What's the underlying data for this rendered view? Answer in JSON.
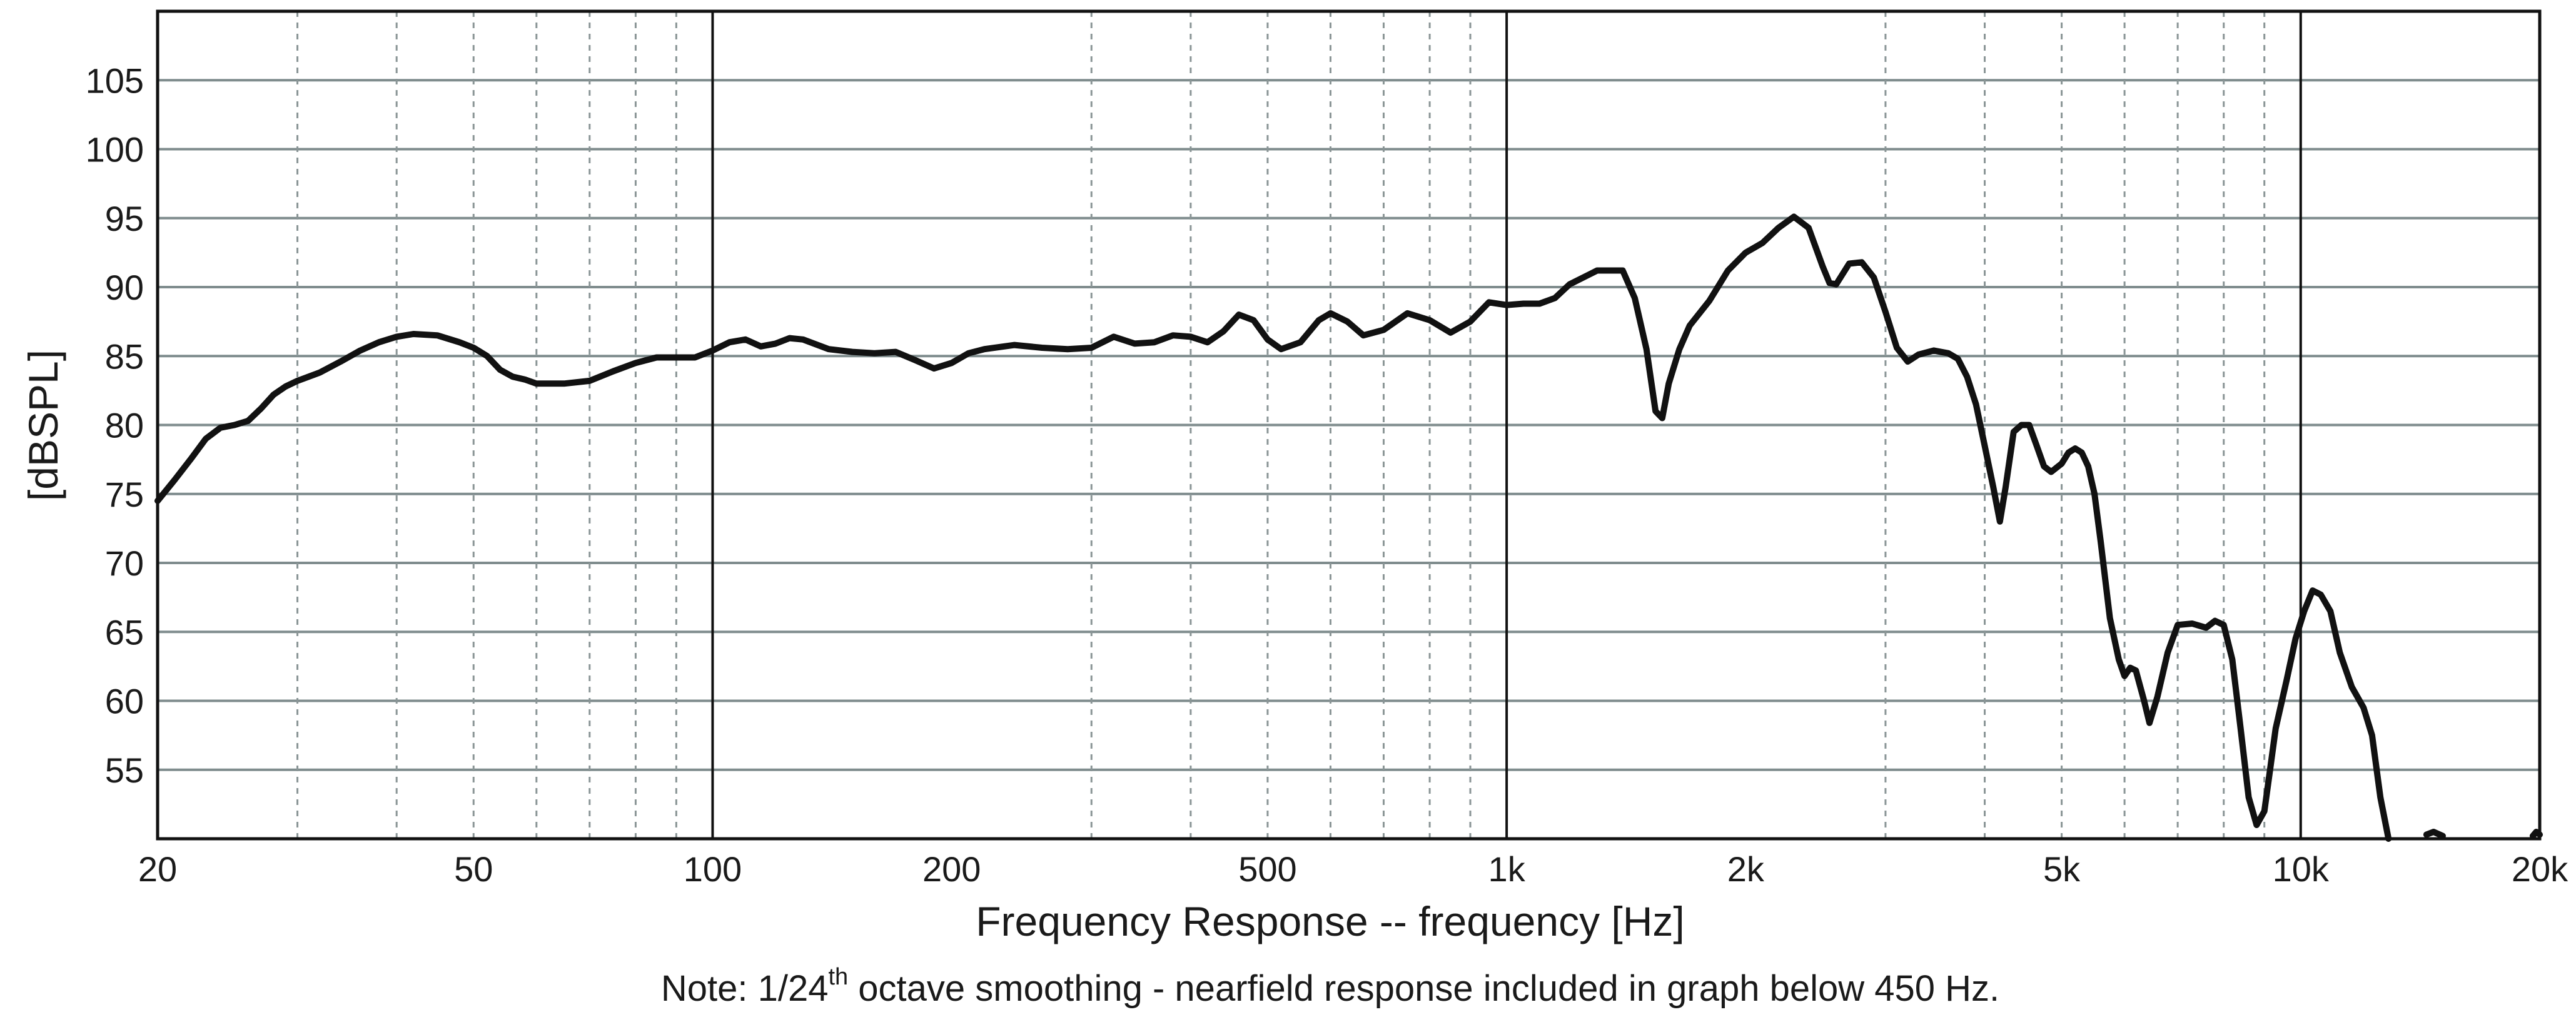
{
  "chart_data": {
    "type": "line",
    "xlabel": "Frequency Response -- frequency [Hz]",
    "ylabel": "[dBSPL]",
    "x_scale": "log",
    "xlim": [
      20,
      20000
    ],
    "ylim": [
      50,
      110
    ],
    "grid": true,
    "x_tick_labels": [
      {
        "value": 20,
        "label": "20"
      },
      {
        "value": 50,
        "label": "50"
      },
      {
        "value": 100,
        "label": "100"
      },
      {
        "value": 200,
        "label": "200"
      },
      {
        "value": 500,
        "label": "500"
      },
      {
        "value": 1000,
        "label": "1k"
      },
      {
        "value": 2000,
        "label": "2k"
      },
      {
        "value": 5000,
        "label": "5k"
      },
      {
        "value": 10000,
        "label": "10k"
      },
      {
        "value": 20000,
        "label": "20k"
      }
    ],
    "y_ticks": [
      55,
      60,
      65,
      70,
      75,
      80,
      85,
      90,
      95,
      100,
      105
    ],
    "x_major_grid": [
      100,
      1000,
      10000
    ],
    "x_minor_grid": [
      30,
      40,
      50,
      60,
      70,
      80,
      90,
      300,
      400,
      500,
      600,
      700,
      800,
      900,
      3000,
      4000,
      5000,
      6000,
      7000,
      8000,
      9000
    ],
    "note": {
      "prefix": "Note: 1/24",
      "superscript": "th",
      "suffix": " octave smoothing - nearfield response included in graph below 450 Hz."
    },
    "series": [
      {
        "color": "#111111",
        "points": [
          [
            20,
            74.5
          ],
          [
            21,
            76
          ],
          [
            22,
            77.5
          ],
          [
            23,
            79
          ],
          [
            24,
            79.8
          ],
          [
            25,
            80
          ],
          [
            26,
            80.3
          ],
          [
            27,
            81.2
          ],
          [
            28,
            82.2
          ],
          [
            29,
            82.8
          ],
          [
            30,
            83.2
          ],
          [
            32,
            83.8
          ],
          [
            34,
            84.6
          ],
          [
            36,
            85.4
          ],
          [
            38,
            86
          ],
          [
            40,
            86.4
          ],
          [
            42,
            86.6
          ],
          [
            45,
            86.5
          ],
          [
            48,
            86
          ],
          [
            50,
            85.6
          ],
          [
            52,
            85
          ],
          [
            54,
            84
          ],
          [
            56,
            83.5
          ],
          [
            58,
            83.3
          ],
          [
            60,
            83
          ],
          [
            65,
            83
          ],
          [
            70,
            83.2
          ],
          [
            75,
            83.9
          ],
          [
            80,
            84.5
          ],
          [
            85,
            84.9
          ],
          [
            90,
            84.9
          ],
          [
            95,
            84.9
          ],
          [
            100,
            85.4
          ],
          [
            105,
            86
          ],
          [
            110,
            86.2
          ],
          [
            115,
            85.7
          ],
          [
            120,
            85.9
          ],
          [
            125,
            86.3
          ],
          [
            130,
            86.2
          ],
          [
            140,
            85.5
          ],
          [
            150,
            85.3
          ],
          [
            160,
            85.2
          ],
          [
            170,
            85.3
          ],
          [
            180,
            84.7
          ],
          [
            190,
            84.1
          ],
          [
            200,
            84.5
          ],
          [
            210,
            85.2
          ],
          [
            220,
            85.5
          ],
          [
            240,
            85.8
          ],
          [
            260,
            85.6
          ],
          [
            280,
            85.5
          ],
          [
            300,
            85.6
          ],
          [
            320,
            86.4
          ],
          [
            340,
            85.9
          ],
          [
            360,
            86
          ],
          [
            380,
            86.5
          ],
          [
            400,
            86.4
          ],
          [
            420,
            86
          ],
          [
            440,
            86.8
          ],
          [
            460,
            88
          ],
          [
            480,
            87.6
          ],
          [
            500,
            86.2
          ],
          [
            520,
            85.5
          ],
          [
            550,
            86
          ],
          [
            580,
            87.6
          ],
          [
            600,
            88.1
          ],
          [
            630,
            87.5
          ],
          [
            660,
            86.5
          ],
          [
            700,
            86.9
          ],
          [
            750,
            88.1
          ],
          [
            800,
            87.6
          ],
          [
            850,
            86.7
          ],
          [
            900,
            87.5
          ],
          [
            950,
            88.9
          ],
          [
            1000,
            88.7
          ],
          [
            1050,
            88.8
          ],
          [
            1100,
            88.8
          ],
          [
            1150,
            89.2
          ],
          [
            1200,
            90.2
          ],
          [
            1300,
            91.2
          ],
          [
            1400,
            91.2
          ],
          [
            1450,
            89.2
          ],
          [
            1500,
            85.5
          ],
          [
            1540,
            81
          ],
          [
            1570,
            80.5
          ],
          [
            1600,
            83
          ],
          [
            1650,
            85.5
          ],
          [
            1700,
            87.2
          ],
          [
            1800,
            89
          ],
          [
            1900,
            91.2
          ],
          [
            2000,
            92.5
          ],
          [
            2100,
            93.2
          ],
          [
            2200,
            94.3
          ],
          [
            2300,
            95.1
          ],
          [
            2400,
            94.3
          ],
          [
            2500,
            91.5
          ],
          [
            2550,
            90.3
          ],
          [
            2600,
            90.2
          ],
          [
            2700,
            91.7
          ],
          [
            2800,
            91.8
          ],
          [
            2900,
            90.7
          ],
          [
            3000,
            88.2
          ],
          [
            3100,
            85.6
          ],
          [
            3200,
            84.6
          ],
          [
            3300,
            85.1
          ],
          [
            3450,
            85.4
          ],
          [
            3600,
            85.2
          ],
          [
            3700,
            84.8
          ],
          [
            3800,
            83.5
          ],
          [
            3900,
            81.5
          ],
          [
            4000,
            78.5
          ],
          [
            4100,
            75.5
          ],
          [
            4180,
            73
          ],
          [
            4250,
            75.5
          ],
          [
            4350,
            79.5
          ],
          [
            4450,
            80
          ],
          [
            4550,
            80
          ],
          [
            4650,
            78.5
          ],
          [
            4750,
            77
          ],
          [
            4850,
            76.6
          ],
          [
            5000,
            77.2
          ],
          [
            5100,
            78
          ],
          [
            5200,
            78.3
          ],
          [
            5300,
            78
          ],
          [
            5400,
            77
          ],
          [
            5500,
            75
          ],
          [
            5600,
            71.5
          ],
          [
            5750,
            66
          ],
          [
            5900,
            63
          ],
          [
            6000,
            61.8
          ],
          [
            6100,
            62.4
          ],
          [
            6200,
            62.2
          ],
          [
            6350,
            60
          ],
          [
            6450,
            58.4
          ],
          [
            6600,
            60.3
          ],
          [
            6800,
            63.5
          ],
          [
            7000,
            65.5
          ],
          [
            7300,
            65.6
          ],
          [
            7600,
            65.3
          ],
          [
            7800,
            65.8
          ],
          [
            8000,
            65.5
          ],
          [
            8200,
            63
          ],
          [
            8400,
            58
          ],
          [
            8600,
            53
          ],
          [
            8800,
            51
          ],
          [
            9000,
            52
          ],
          [
            9150,
            55
          ],
          [
            9300,
            58
          ],
          [
            9600,
            61.5
          ],
          [
            9850,
            64.5
          ],
          [
            10100,
            66.5
          ],
          [
            10350,
            68
          ],
          [
            10600,
            67.7
          ],
          [
            10900,
            66.5
          ],
          [
            11200,
            63.5
          ],
          [
            11600,
            61
          ],
          [
            12000,
            59.5
          ],
          [
            12300,
            57.5
          ],
          [
            12600,
            53
          ],
          [
            12900,
            50
          ]
        ]
      },
      {
        "color": "#111111",
        "points": [
          [
            14400,
            50.3
          ],
          [
            14700,
            50.5
          ],
          [
            15100,
            50.2
          ]
        ]
      },
      {
        "color": "#111111",
        "points": [
          [
            19600,
            50.2
          ],
          [
            19800,
            50.5
          ],
          [
            20000,
            50.3
          ]
        ]
      }
    ]
  }
}
